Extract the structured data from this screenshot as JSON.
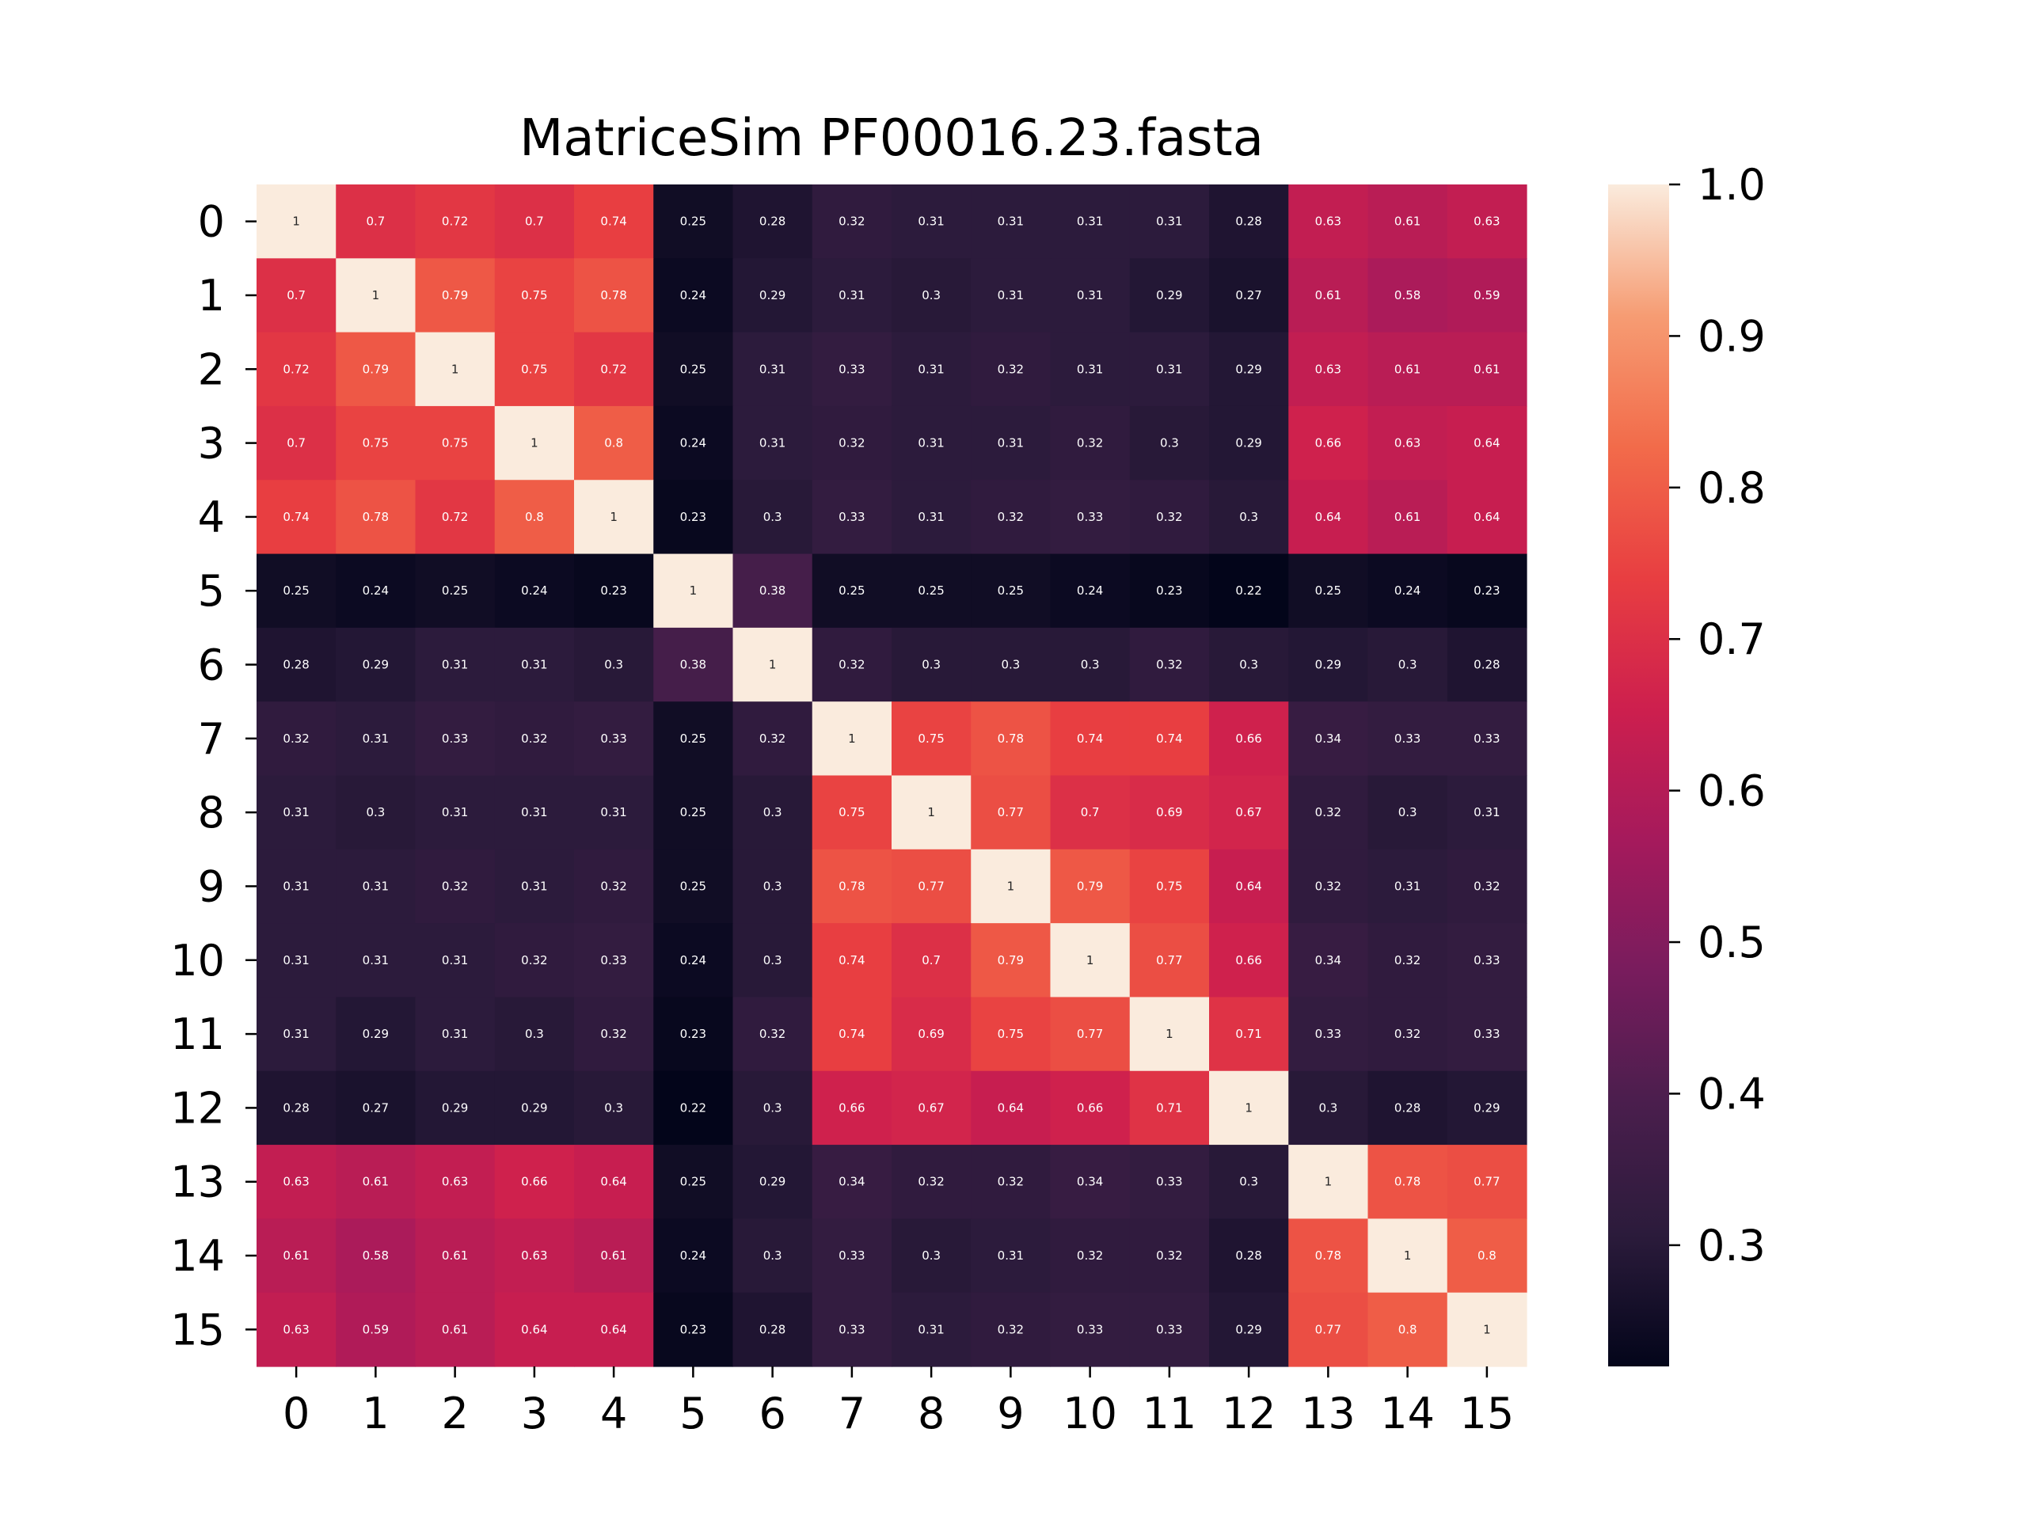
{
  "chart_data": {
    "type": "heatmap",
    "title": "MatriceSim PF00016.23.fasta",
    "x_categories": [
      "0",
      "1",
      "2",
      "3",
      "4",
      "5",
      "6",
      "7",
      "8",
      "9",
      "10",
      "11",
      "12",
      "13",
      "14",
      "15"
    ],
    "y_categories": [
      "0",
      "1",
      "2",
      "3",
      "4",
      "5",
      "6",
      "7",
      "8",
      "9",
      "10",
      "11",
      "12",
      "13",
      "14",
      "15"
    ],
    "values": [
      [
        1,
        0.7,
        0.72,
        0.7,
        0.74,
        0.25,
        0.28,
        0.32,
        0.31,
        0.31,
        0.31,
        0.31,
        0.28,
        0.63,
        0.61,
        0.63
      ],
      [
        0.7,
        1,
        0.79,
        0.75,
        0.78,
        0.24,
        0.29,
        0.31,
        0.3,
        0.31,
        0.31,
        0.29,
        0.27,
        0.61,
        0.58,
        0.59
      ],
      [
        0.72,
        0.79,
        1,
        0.75,
        0.72,
        0.25,
        0.31,
        0.33,
        0.31,
        0.32,
        0.31,
        0.31,
        0.29,
        0.63,
        0.61,
        0.61
      ],
      [
        0.7,
        0.75,
        0.75,
        1,
        0.8,
        0.24,
        0.31,
        0.32,
        0.31,
        0.31,
        0.32,
        0.3,
        0.29,
        0.66,
        0.63,
        0.64
      ],
      [
        0.74,
        0.78,
        0.72,
        0.8,
        1,
        0.23,
        0.3,
        0.33,
        0.31,
        0.32,
        0.33,
        0.32,
        0.3,
        0.64,
        0.61,
        0.64
      ],
      [
        0.25,
        0.24,
        0.25,
        0.24,
        0.23,
        1,
        0.38,
        0.25,
        0.25,
        0.25,
        0.24,
        0.23,
        0.22,
        0.25,
        0.24,
        0.23
      ],
      [
        0.28,
        0.29,
        0.31,
        0.31,
        0.3,
        0.38,
        1,
        0.32,
        0.3,
        0.3,
        0.3,
        0.32,
        0.3,
        0.29,
        0.3,
        0.28
      ],
      [
        0.32,
        0.31,
        0.33,
        0.32,
        0.33,
        0.25,
        0.32,
        1,
        0.75,
        0.78,
        0.74,
        0.74,
        0.66,
        0.34,
        0.33,
        0.33
      ],
      [
        0.31,
        0.3,
        0.31,
        0.31,
        0.31,
        0.25,
        0.3,
        0.75,
        1,
        0.77,
        0.7,
        0.69,
        0.67,
        0.32,
        0.3,
        0.31
      ],
      [
        0.31,
        0.31,
        0.32,
        0.31,
        0.32,
        0.25,
        0.3,
        0.78,
        0.77,
        1,
        0.79,
        0.75,
        0.64,
        0.32,
        0.31,
        0.32
      ],
      [
        0.31,
        0.31,
        0.31,
        0.32,
        0.33,
        0.24,
        0.3,
        0.74,
        0.7,
        0.79,
        1,
        0.77,
        0.66,
        0.34,
        0.32,
        0.33
      ],
      [
        0.31,
        0.29,
        0.31,
        0.3,
        0.32,
        0.23,
        0.32,
        0.74,
        0.69,
        0.75,
        0.77,
        1,
        0.71,
        0.33,
        0.32,
        0.33
      ],
      [
        0.28,
        0.27,
        0.29,
        0.29,
        0.3,
        0.22,
        0.3,
        0.66,
        0.67,
        0.64,
        0.66,
        0.71,
        1,
        0.3,
        0.28,
        0.29
      ],
      [
        0.63,
        0.61,
        0.63,
        0.66,
        0.64,
        0.25,
        0.29,
        0.34,
        0.32,
        0.32,
        0.34,
        0.33,
        0.3,
        1,
        0.78,
        0.77
      ],
      [
        0.61,
        0.58,
        0.61,
        0.63,
        0.61,
        0.24,
        0.3,
        0.33,
        0.3,
        0.31,
        0.32,
        0.32,
        0.28,
        0.78,
        1,
        0.8
      ],
      [
        0.63,
        0.59,
        0.61,
        0.64,
        0.64,
        0.23,
        0.28,
        0.33,
        0.31,
        0.32,
        0.33,
        0.33,
        0.29,
        0.77,
        0.8,
        1
      ]
    ],
    "colorbar": {
      "min": 0.22,
      "max": 1.0,
      "ticks": [
        0.3,
        0.4,
        0.5,
        0.6,
        0.7,
        0.8,
        0.9,
        1.0
      ],
      "tick_labels": [
        "0.3",
        "0.4",
        "0.5",
        "0.6",
        "0.7",
        "0.8",
        "0.9",
        "1.0"
      ],
      "colormap": "rocket",
      "stops": [
        "#03051a",
        "#2b1b3b",
        "#4a1e4d",
        "#781c5d",
        "#a51a5c",
        "#cd1f4e",
        "#e83e41",
        "#f26b4a",
        "#f69c73",
        "#faebdd"
      ]
    },
    "annotations": true,
    "grid": false
  }
}
